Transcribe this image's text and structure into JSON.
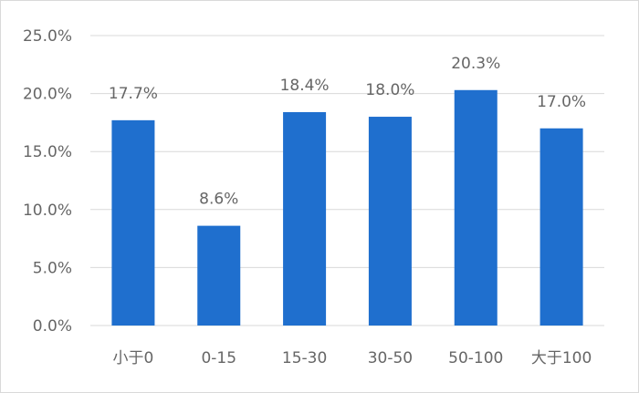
{
  "chart_data": {
    "type": "bar",
    "title": "",
    "xlabel": "",
    "ylabel": "",
    "categories": [
      "小于0",
      "0-15",
      "15-30",
      "30-50",
      "50-100",
      "大于100"
    ],
    "values": [
      17.7,
      8.6,
      18.4,
      18.0,
      20.3,
      17.0
    ],
    "value_labels": [
      "17.7%",
      "8.6%",
      "18.4%",
      "18.0%",
      "20.3%",
      "17.0%"
    ],
    "ylim": [
      0,
      25
    ],
    "yticks": [
      0,
      5,
      10,
      15,
      20,
      25
    ],
    "ytick_labels": [
      "0.0%",
      "5.0%",
      "10.0%",
      "15.0%",
      "20.0%",
      "25.0%"
    ],
    "grid": true,
    "legend": "none",
    "bar_color": "#1f6fce",
    "grid_color": "#d9d9d9"
  }
}
